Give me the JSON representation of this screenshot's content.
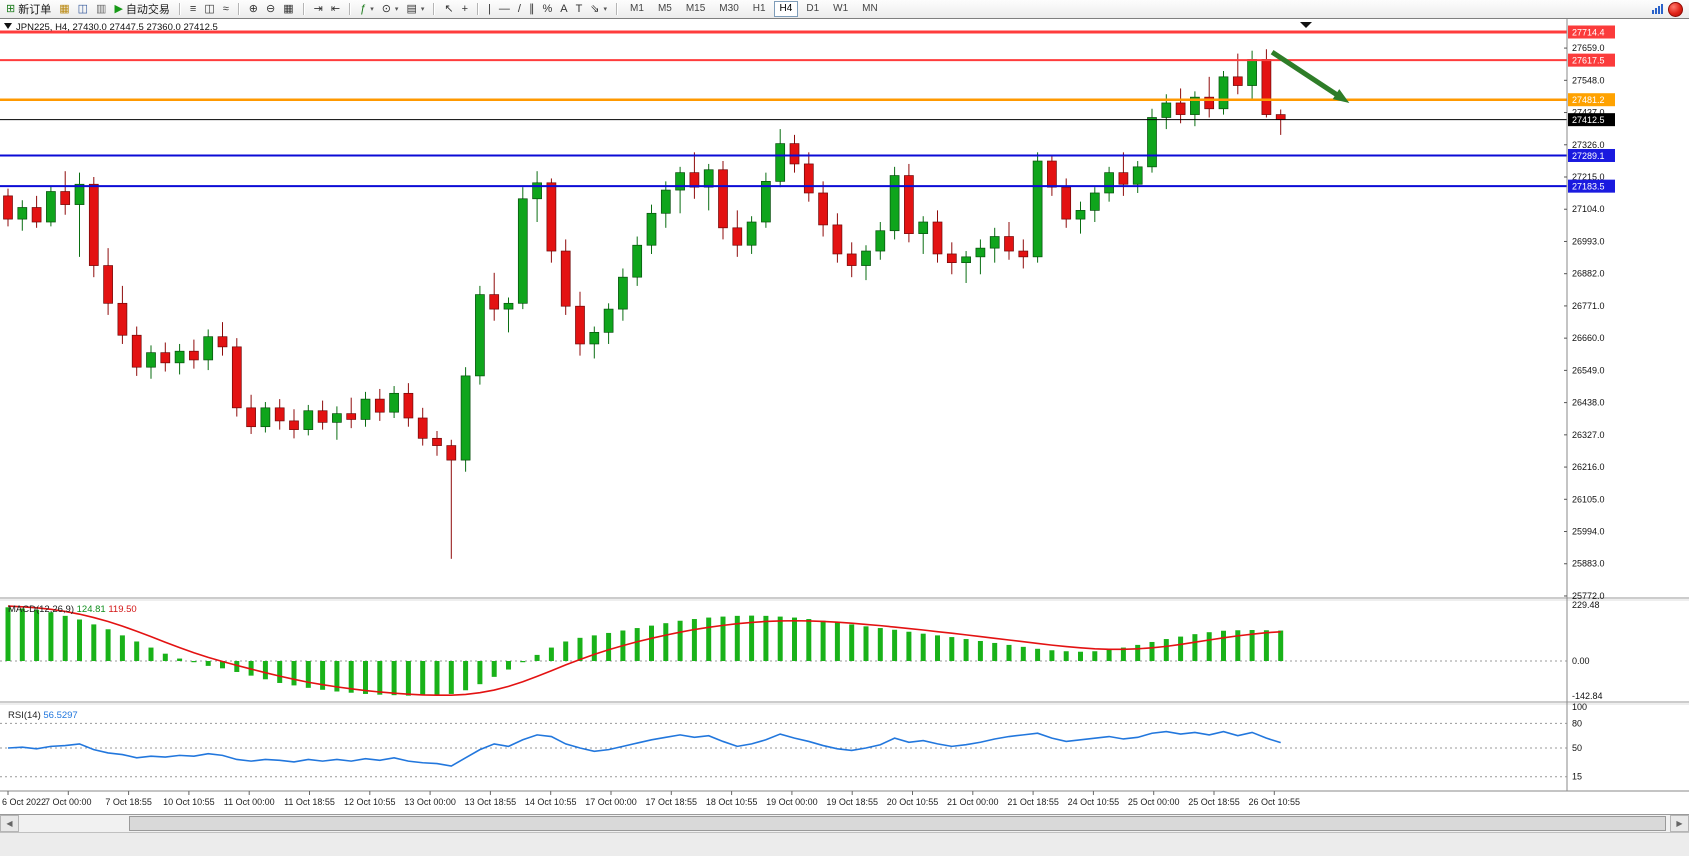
{
  "app": {
    "symbol_ohlc_label": "JPN225, H4, 27430.0 27447.5 27360.0 27412.5"
  },
  "toolbar": {
    "groups": [
      {
        "items": [
          {
            "name": "new-order-button",
            "glyph": "⊞",
            "color": "#1a7a1a",
            "label": "新订单"
          },
          {
            "name": "market-watch-button",
            "glyph": "▦",
            "color": "#b8860b"
          },
          {
            "name": "navigator-button",
            "glyph": "◫",
            "color": "#33579a"
          },
          {
            "name": "terminal-button",
            "glyph": "▥",
            "color": "#6a6a6a"
          },
          {
            "name": "autotrading-button",
            "glyph": "▶",
            "color": "#189a18",
            "label": "自动交易"
          }
        ]
      },
      {
        "items": [
          {
            "name": "bar-chart-button",
            "glyph": "≡"
          },
          {
            "name": "candlestick-chart-button",
            "glyph": "◫"
          },
          {
            "name": "line-chart-button",
            "glyph": "≈"
          }
        ]
      },
      {
        "items": [
          {
            "name": "zoom-in-button",
            "glyph": "⊕"
          },
          {
            "name": "zoom-out-button",
            "glyph": "⊖"
          },
          {
            "name": "tile-windows-button",
            "glyph": "▦"
          }
        ]
      },
      {
        "items": [
          {
            "name": "auto-scroll-button",
            "glyph": "⇥"
          },
          {
            "name": "chart-shift-button",
            "glyph": "⇤"
          }
        ]
      },
      {
        "items": [
          {
            "name": "indicators-button",
            "glyph": "ƒ",
            "color": "#1a7a1a",
            "dropdown": true
          },
          {
            "name": "periods-button",
            "glyph": "⊙",
            "dropdown": true
          },
          {
            "name": "templates-button",
            "glyph": "▤",
            "dropdown": true
          }
        ]
      },
      {
        "items": [
          {
            "name": "cursor-button",
            "glyph": "↖"
          },
          {
            "name": "crosshair-button",
            "glyph": "+"
          }
        ]
      },
      {
        "items": [
          {
            "name": "vertical-line-button",
            "glyph": "|"
          },
          {
            "name": "horizontal-line-button",
            "glyph": "—"
          },
          {
            "name": "trendline-button",
            "glyph": "/"
          },
          {
            "name": "equidistant-channel-button",
            "glyph": "∥"
          },
          {
            "name": "fibonacci-button",
            "glyph": "%"
          },
          {
            "name": "text-button",
            "glyph": "A"
          },
          {
            "name": "text-label-button",
            "glyph": "T"
          },
          {
            "name": "arrows-button",
            "glyph": "⇘",
            "dropdown": true
          }
        ]
      }
    ],
    "timeframes": [
      {
        "name": "timeframe-m1",
        "label": "M1",
        "active": false
      },
      {
        "name": "timeframe-m5",
        "label": "M5",
        "active": false
      },
      {
        "name": "timeframe-m15",
        "label": "M15",
        "active": false
      },
      {
        "name": "timeframe-m30",
        "label": "M30",
        "active": false
      },
      {
        "name": "timeframe-h1",
        "label": "H1",
        "active": false
      },
      {
        "name": "timeframe-h4",
        "label": "H4",
        "active": true
      },
      {
        "name": "timeframe-d1",
        "label": "D1",
        "active": false
      },
      {
        "name": "timeframe-w1",
        "label": "W1",
        "active": false
      },
      {
        "name": "timeframe-mn",
        "label": "MN",
        "active": false
      }
    ]
  },
  "scrollbar": {
    "left_glyph": "◀",
    "right_glyph": "▶"
  },
  "chart_data": {
    "type": "candlestick",
    "symbol": "JPN225",
    "timeframe": "H4",
    "current_bar": {
      "open": 27430.0,
      "high": 27447.5,
      "low": 27360.0,
      "close": 27412.5
    },
    "price_axis_range": [
      25772.0,
      27714.4
    ],
    "price_axis": {
      "gridlines": [
        27659,
        27548,
        27437,
        27326,
        27215,
        27104,
        26993,
        26882,
        26771,
        26660,
        26549,
        26438,
        26327,
        26216,
        26105,
        25994,
        25883,
        25772
      ],
      "badges": [
        {
          "value": "27714.4",
          "color": "#fb3b3b"
        },
        {
          "value": "27617.5",
          "color": "#fb3b3b"
        },
        {
          "value": "27481.2",
          "color": "#ffa200"
        },
        {
          "value": "27412.5",
          "color": "#000000"
        },
        {
          "value": "27289.1",
          "color": "#1a1adf"
        },
        {
          "value": "27183.5",
          "color": "#1a1adf"
        }
      ]
    },
    "hlines": [
      {
        "price": 27714.4,
        "color": "#ff3c3c",
        "width": 3
      },
      {
        "price": 27617.5,
        "color": "#ff3c3c",
        "width": 2
      },
      {
        "price": 27481.2,
        "color": "#ff9900",
        "width": 2.5
      },
      {
        "price": 27412.5,
        "color": "#000000",
        "width": 1
      },
      {
        "price": 27289.1,
        "color": "#0b0bd6",
        "width": 2
      },
      {
        "price": 27183.5,
        "color": "#0b0bd6",
        "width": 2
      }
    ],
    "annotations": [
      {
        "type": "arrow",
        "color": "#2e7d28",
        "from_bar": 88.4,
        "from_price": 27645,
        "to_bar": 93.8,
        "to_price": 27470
      }
    ],
    "time_labels": [
      "6 Oct 2022",
      "7 Oct 00:00",
      "7 Oct 18:55",
      "10 Oct 10:55",
      "11 Oct 00:00",
      "11 Oct 18:55",
      "12 Oct 10:55",
      "13 Oct 00:00",
      "13 Oct 18:55",
      "14 Oct 10:55",
      "17 Oct 00:00",
      "17 Oct 18:55",
      "18 Oct 10:55",
      "19 Oct 00:00",
      "19 Oct 18:55",
      "20 Oct 10:55",
      "21 Oct 00:00",
      "21 Oct 18:55",
      "24 Oct 10:55",
      "25 Oct 00:00",
      "25 Oct 18:55",
      "26 Oct 10:55"
    ],
    "candles": [
      [
        27150,
        27175,
        27045,
        27070
      ],
      [
        27070,
        27135,
        27030,
        27110
      ],
      [
        27110,
        27150,
        27040,
        27060
      ],
      [
        27060,
        27185,
        27045,
        27165
      ],
      [
        27165,
        27235,
        27085,
        27120
      ],
      [
        27120,
        27230,
        26940,
        27190
      ],
      [
        27190,
        27215,
        26870,
        26910
      ],
      [
        26910,
        26970,
        26740,
        26780
      ],
      [
        26780,
        26840,
        26640,
        26670
      ],
      [
        26670,
        26700,
        26530,
        26560
      ],
      [
        26560,
        26635,
        26520,
        26610
      ],
      [
        26610,
        26645,
        26545,
        26575
      ],
      [
        26575,
        26640,
        26535,
        26615
      ],
      [
        26615,
        26655,
        26555,
        26585
      ],
      [
        26585,
        26690,
        26550,
        26665
      ],
      [
        26665,
        26715,
        26600,
        26630
      ],
      [
        26630,
        26660,
        26390,
        26420
      ],
      [
        26420,
        26465,
        26330,
        26355
      ],
      [
        26355,
        26440,
        26335,
        26420
      ],
      [
        26420,
        26450,
        26345,
        26375
      ],
      [
        26375,
        26415,
        26315,
        26345
      ],
      [
        26345,
        26430,
        26325,
        26410
      ],
      [
        26410,
        26445,
        26345,
        26370
      ],
      [
        26370,
        26425,
        26310,
        26400
      ],
      [
        26400,
        26455,
        26350,
        26380
      ],
      [
        26380,
        26475,
        26355,
        26450
      ],
      [
        26450,
        26485,
        26375,
        26405
      ],
      [
        26405,
        26495,
        26385,
        26470
      ],
      [
        26470,
        26505,
        26355,
        26385
      ],
      [
        26385,
        26420,
        26290,
        26315
      ],
      [
        26315,
        26340,
        26255,
        26290
      ],
      [
        26290,
        26310,
        25900,
        26240
      ],
      [
        26240,
        26560,
        26200,
        26530
      ],
      [
        26530,
        26840,
        26500,
        26810
      ],
      [
        26810,
        26885,
        26720,
        26760
      ],
      [
        26760,
        26800,
        26680,
        26780
      ],
      [
        26780,
        27180,
        26760,
        27140
      ],
      [
        27140,
        27235,
        27060,
        27195
      ],
      [
        27195,
        27210,
        26920,
        26960
      ],
      [
        26960,
        27000,
        26740,
        26770
      ],
      [
        26770,
        26820,
        26600,
        26640
      ],
      [
        26640,
        26700,
        26590,
        26680
      ],
      [
        26680,
        26780,
        26640,
        26760
      ],
      [
        26760,
        26900,
        26720,
        26870
      ],
      [
        26870,
        27010,
        26840,
        26980
      ],
      [
        26980,
        27120,
        26950,
        27090
      ],
      [
        27090,
        27200,
        27040,
        27170
      ],
      [
        27170,
        27250,
        27090,
        27230
      ],
      [
        27230,
        27300,
        27140,
        27180
      ],
      [
        27180,
        27260,
        27100,
        27240
      ],
      [
        27240,
        27270,
        27000,
        27040
      ],
      [
        27040,
        27100,
        26940,
        26980
      ],
      [
        26980,
        27080,
        26950,
        27060
      ],
      [
        27060,
        27230,
        27040,
        27200
      ],
      [
        27200,
        27380,
        27180,
        27330
      ],
      [
        27330,
        27360,
        27230,
        27260
      ],
      [
        27260,
        27300,
        27130,
        27160
      ],
      [
        27160,
        27200,
        27010,
        27050
      ],
      [
        27050,
        27090,
        26920,
        26950
      ],
      [
        26950,
        26990,
        26870,
        26910
      ],
      [
        26910,
        26980,
        26860,
        26960
      ],
      [
        26960,
        27060,
        26930,
        27030
      ],
      [
        27030,
        27250,
        27000,
        27220
      ],
      [
        27220,
        27260,
        26990,
        27020
      ],
      [
        27020,
        27080,
        26950,
        27060
      ],
      [
        27060,
        27100,
        26920,
        26950
      ],
      [
        26950,
        26990,
        26880,
        26920
      ],
      [
        26920,
        26960,
        26850,
        26940
      ],
      [
        26940,
        27000,
        26880,
        26970
      ],
      [
        26970,
        27040,
        26920,
        27010
      ],
      [
        27010,
        27060,
        26930,
        26960
      ],
      [
        26960,
        27000,
        26900,
        26940
      ],
      [
        26940,
        27300,
        26920,
        27270
      ],
      [
        27270,
        27290,
        27150,
        27180
      ],
      [
        27180,
        27210,
        27040,
        27070
      ],
      [
        27070,
        27130,
        27020,
        27100
      ],
      [
        27100,
        27180,
        27060,
        27160
      ],
      [
        27160,
        27250,
        27130,
        27230
      ],
      [
        27230,
        27300,
        27150,
        27190
      ],
      [
        27190,
        27270,
        27160,
        27250
      ],
      [
        27250,
        27450,
        27230,
        27420
      ],
      [
        27420,
        27500,
        27380,
        27470
      ],
      [
        27470,
        27520,
        27400,
        27430
      ],
      [
        27430,
        27510,
        27390,
        27490
      ],
      [
        27490,
        27560,
        27420,
        27450
      ],
      [
        27450,
        27580,
        27430,
        27560
      ],
      [
        27560,
        27640,
        27500,
        27530
      ],
      [
        27530,
        27650,
        27480,
        27620
      ],
      [
        27620,
        27655,
        27420,
        27430
      ],
      [
        27430,
        27447.5,
        27360,
        27412.5
      ]
    ],
    "up_color": "#0fa51c",
    "down_color": "#e31212",
    "indicators": {
      "macd": {
        "label": "MACD(12,26,9)",
        "value_main": "124.81",
        "value_signal": "119.50",
        "axis": [
          "229.48",
          "0.00",
          "-142.84"
        ],
        "hist_color": "#19b219",
        "signal_color": "#e31212",
        "histogram": [
          220,
          215,
          210,
          200,
          185,
          170,
          150,
          130,
          105,
          80,
          55,
          30,
          10,
          -5,
          -20,
          -30,
          -45,
          -60,
          -75,
          -90,
          -100,
          -110,
          -118,
          -125,
          -130,
          -135,
          -138,
          -140,
          -142,
          -140,
          -138,
          -135,
          -120,
          -95,
          -65,
          -35,
          -5,
          25,
          55,
          80,
          95,
          105,
          115,
          125,
          135,
          145,
          155,
          165,
          172,
          178,
          182,
          185,
          186,
          185,
          182,
          178,
          172,
          165,
          158,
          150,
          142,
          135,
          128,
          120,
          112,
          105,
          98,
          90,
          82,
          74,
          66,
          58,
          50,
          44,
          40,
          38,
          40,
          46,
          55,
          66,
          78,
          90,
          100,
          110,
          118,
          124,
          126,
          127,
          126,
          124.81
        ],
        "signal": [
          225,
          222,
          218,
          212,
          203,
          192,
          178,
          162,
          143,
          122,
          100,
          77,
          55,
          34,
          15,
          -2,
          -18,
          -33,
          -48,
          -62,
          -75,
          -87,
          -97,
          -106,
          -114,
          -121,
          -127,
          -132,
          -136,
          -139,
          -140,
          -140,
          -137,
          -130,
          -119,
          -104,
          -85,
          -63,
          -40,
          -16,
          6,
          27,
          46,
          63,
          79,
          93,
          106,
          118,
          129,
          138,
          146,
          153,
          158,
          162,
          164,
          165,
          164,
          162,
          159,
          155,
          150,
          145,
          139,
          133,
          127,
          120,
          114,
          107,
          100,
          93,
          86,
          79,
          72,
          65,
          59,
          54,
          50,
          48,
          48,
          50,
          54,
          60,
          68,
          77,
          86,
          95,
          103,
          110,
          116,
          119.5
        ]
      },
      "rsi": {
        "label": "RSI(14)",
        "value_label": "56.5297",
        "axis": [
          "100",
          "80",
          "50",
          "15"
        ],
        "levels": [
          80,
          50,
          15
        ],
        "line_color": "#2277dd",
        "values": [
          50,
          51,
          49,
          52,
          53,
          55,
          48,
          44,
          42,
          38,
          40,
          39,
          41,
          40,
          43,
          41,
          36,
          34,
          36,
          35,
          33,
          36,
          34,
          36,
          34,
          37,
          35,
          38,
          34,
          32,
          31,
          28,
          38,
          48,
          55,
          52,
          60,
          66,
          64,
          55,
          50,
          46,
          48,
          52,
          56,
          60,
          63,
          66,
          63,
          65,
          58,
          52,
          55,
          60,
          67,
          62,
          58,
          53,
          49,
          47,
          50,
          54,
          62,
          57,
          59,
          55,
          52,
          54,
          57,
          61,
          64,
          66,
          68,
          62,
          58,
          60,
          62,
          64,
          61,
          63,
          68,
          70,
          67,
          69,
          66,
          70,
          65,
          69,
          62,
          56.53
        ]
      }
    }
  }
}
